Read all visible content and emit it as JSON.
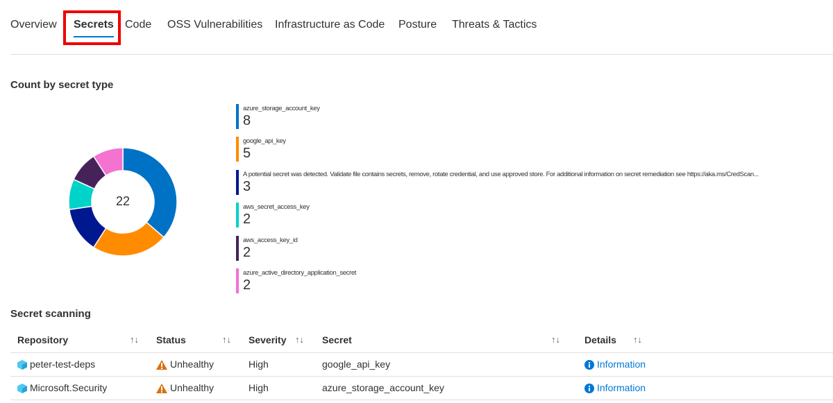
{
  "tabs": [
    {
      "label": "Overview"
    },
    {
      "label": "Secrets"
    },
    {
      "label": "Code"
    },
    {
      "label": "OSS Vulnerabilities"
    },
    {
      "label": "Infrastructure as Code"
    },
    {
      "label": "Posture"
    },
    {
      "label": "Threats & Tactics"
    }
  ],
  "active_tab": "Secrets",
  "chart_title": "Count by secret type",
  "chart_data": {
    "type": "pie",
    "total": "22",
    "categories": [
      "azure_storage_account_key",
      "google_api_key",
      "A potential secret was detected. Validate file contains secrets, remove, rotate credential, and use approved store. For additional information on secret remediation see https://aka.ms/CredScan...",
      "aws_secret_access_key",
      "aws_access_key_id",
      "azure_active_directory_application_secret"
    ],
    "values": [
      8,
      5,
      3,
      2,
      2,
      2
    ],
    "colors": [
      "#0072c6",
      "#ff8c00",
      "#00188f",
      "#00d4c8",
      "#45235a",
      "#f472d0"
    ],
    "legend_placement": "right"
  },
  "table_title": "Secret scanning",
  "table": {
    "headers": [
      "Repository",
      "Status",
      "Severity",
      "Secret",
      "Details"
    ],
    "rows": [
      {
        "repository": "peter-test-deps",
        "status": "Unhealthy",
        "severity": "High",
        "secret": "google_api_key",
        "details": "Information"
      },
      {
        "repository": "Microsoft.Security",
        "status": "Unhealthy",
        "severity": "High",
        "secret": "azure_storage_account_key",
        "details": "Information"
      }
    ]
  },
  "sort_glyph": "↑↓"
}
